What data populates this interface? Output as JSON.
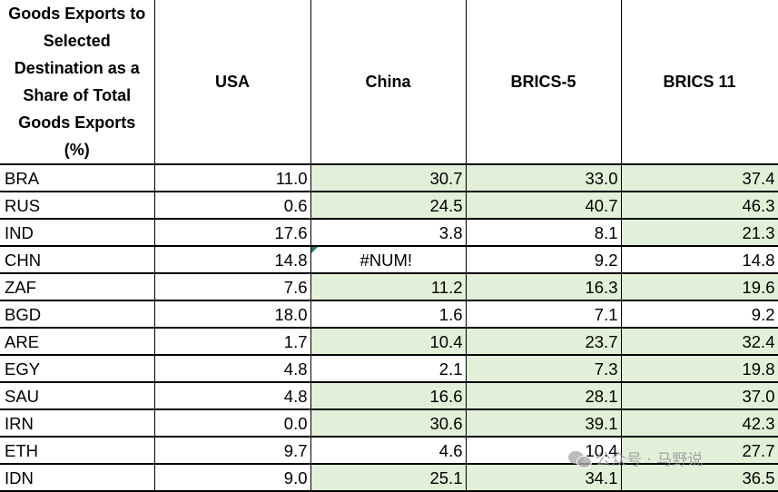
{
  "table": {
    "header_lines": [
      "Goods Exports to",
      "Selected",
      "Destination as a",
      "Share of Total",
      "Goods Exports",
      "(%)"
    ],
    "columns": [
      "USA",
      "China",
      "BRICS-5",
      "BRICS 11"
    ],
    "rows": [
      {
        "code": "BRA",
        "values": [
          "11.0",
          "30.7",
          "33.0",
          "37.4"
        ]
      },
      {
        "code": "RUS",
        "values": [
          "0.6",
          "24.5",
          "40.7",
          "46.3"
        ]
      },
      {
        "code": "IND",
        "values": [
          "17.6",
          "3.8",
          "8.1",
          "21.3"
        ]
      },
      {
        "code": "CHN",
        "values": [
          "14.8",
          "#NUM!",
          "9.2",
          "14.8"
        ]
      },
      {
        "code": "ZAF",
        "values": [
          "7.6",
          "11.2",
          "16.3",
          "19.6"
        ]
      },
      {
        "code": "BGD",
        "values": [
          "18.0",
          "1.6",
          "7.1",
          "9.2"
        ]
      },
      {
        "code": "ARE",
        "values": [
          "1.7",
          "10.4",
          "23.7",
          "32.4"
        ]
      },
      {
        "code": "EGY",
        "values": [
          "4.8",
          "2.1",
          "7.3",
          "19.8"
        ]
      },
      {
        "code": "SAU",
        "values": [
          "4.8",
          "16.6",
          "28.1",
          "37.0"
        ]
      },
      {
        "code": "IRN",
        "values": [
          "0.0",
          "30.6",
          "39.1",
          "42.3"
        ]
      },
      {
        "code": "ETH",
        "values": [
          "9.7",
          "4.6",
          "10.4",
          "27.7"
        ]
      },
      {
        "code": "IDN",
        "values": [
          "9.0",
          "25.1",
          "34.1",
          "36.5"
        ]
      }
    ]
  },
  "highlight_color": "#e2f0d9",
  "watermark": {
    "text": "公众号 · 马野说",
    "icon": "wechat-icon"
  }
}
